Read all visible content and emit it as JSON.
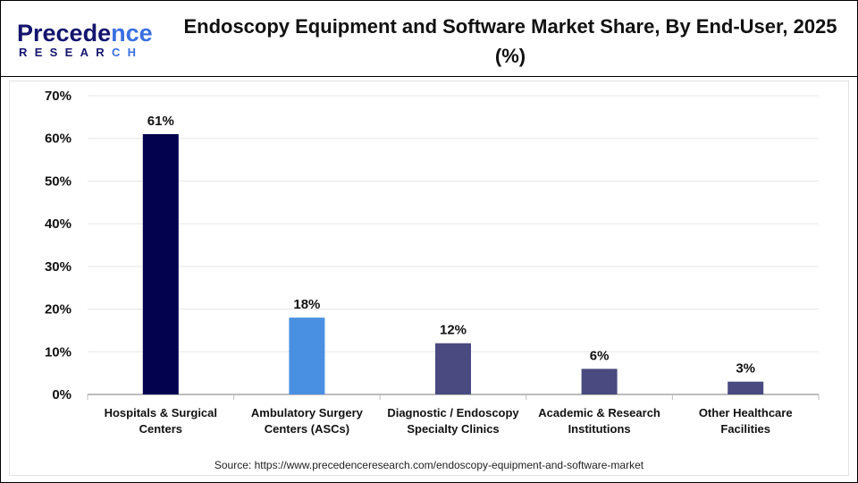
{
  "logo": {
    "line1_a": "P",
    "line1_b": "recede",
    "line1_c": "nce",
    "line2_a": "RESEAR",
    "line2_b": "CH"
  },
  "title": "Endoscopy Equipment and Software Market Share, By End-User, 2025 (%)",
  "source": "Source: https://www.precedenceresearch.com/endoscopy-equipment-and-software-market",
  "chart_data": {
    "type": "bar",
    "title": "Endoscopy Equipment and Software Market Share, By End-User, 2025 (%)",
    "categories": [
      [
        "Hospitals & Surgical",
        "Centers"
      ],
      [
        "Ambulatory Surgery",
        "Centers (ASCs)"
      ],
      [
        "Diagnostic / Endoscopy",
        "Specialty Clinics"
      ],
      [
        "Academic & Research",
        "Institutions"
      ],
      [
        "Other Healthcare",
        "Facilities"
      ]
    ],
    "values": [
      61,
      18,
      12,
      6,
      3
    ],
    "data_labels": [
      "61%",
      "18%",
      "12%",
      "6%",
      "3%"
    ],
    "colors": [
      "#02024e",
      "#4a90e2",
      "#4a4a80",
      "#4a4a80",
      "#4a4a80"
    ],
    "ylim": [
      0,
      70
    ],
    "yticks": [
      "0%",
      "10%",
      "20%",
      "30%",
      "40%",
      "50%",
      "60%",
      "70%"
    ],
    "grid": true,
    "xlabel": "",
    "ylabel": ""
  }
}
